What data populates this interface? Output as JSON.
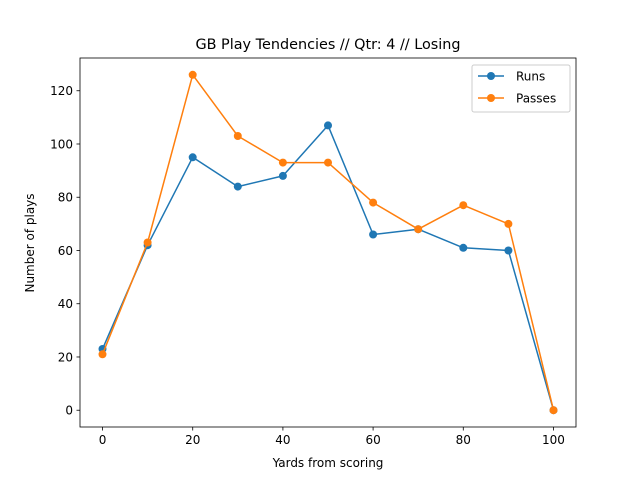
{
  "chart_data": {
    "type": "line",
    "title": "GB Play Tendencies // Qtr: 4 // Losing",
    "xlabel": "Yards from scoring",
    "ylabel": "Number of plays",
    "x": [
      0,
      10,
      20,
      30,
      40,
      50,
      60,
      70,
      80,
      90,
      100
    ],
    "xlim": [
      -5,
      105
    ],
    "ylim": [
      -6.3,
      132.3
    ],
    "xticks": [
      0,
      20,
      40,
      60,
      80,
      100
    ],
    "yticks": [
      0,
      20,
      40,
      60,
      80,
      100,
      120
    ],
    "grid": false,
    "legend_position": "top-right",
    "series": [
      {
        "name": "Runs",
        "color": "#1f77b4",
        "values": [
          23,
          62,
          95,
          84,
          88,
          107,
          66,
          68,
          61,
          60,
          0
        ]
      },
      {
        "name": "Passes",
        "color": "#ff7f0e",
        "values": [
          21,
          63,
          126,
          103,
          93,
          93,
          78,
          68,
          77,
          70,
          0
        ]
      }
    ]
  }
}
